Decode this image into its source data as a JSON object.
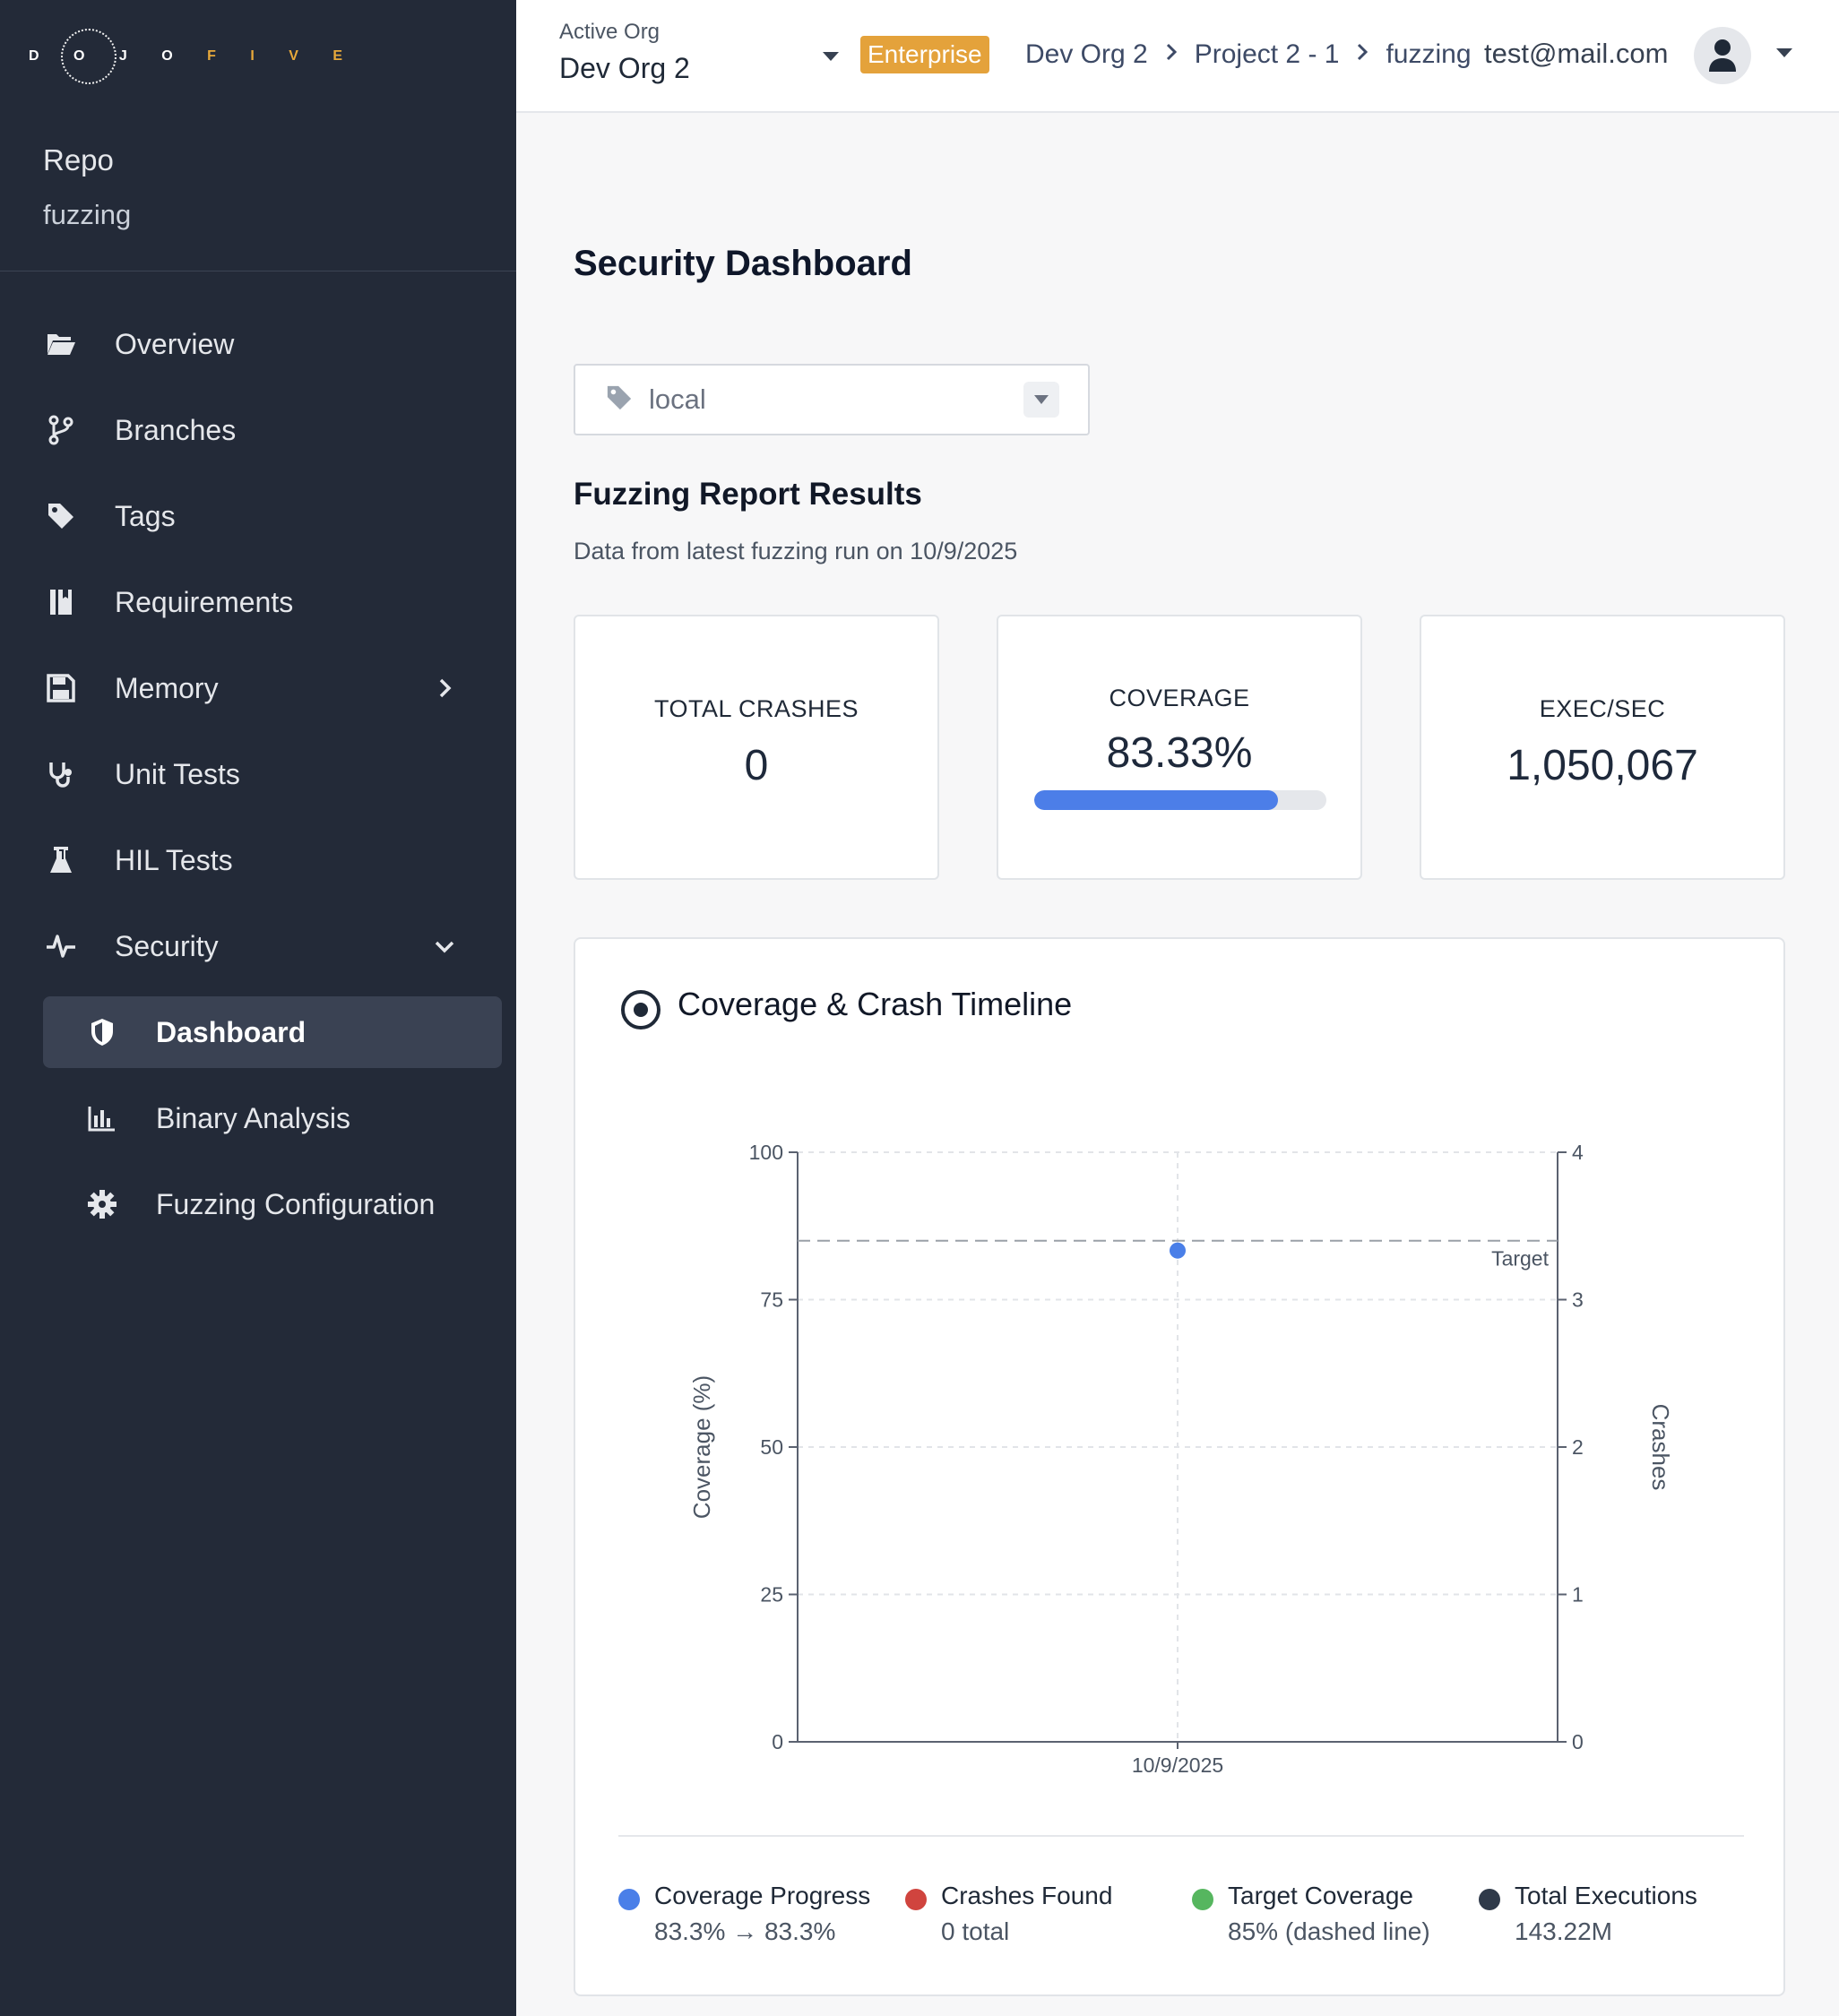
{
  "brand": {
    "logo_text_a": "D O J O",
    "logo_text_b": "F I V E"
  },
  "sidebar": {
    "repo_label": "Repo",
    "repo_name": "fuzzing",
    "items": [
      {
        "label": "Overview",
        "icon": "folder-open-icon"
      },
      {
        "label": "Branches",
        "icon": "branch-icon"
      },
      {
        "label": "Tags",
        "icon": "tag-icon"
      },
      {
        "label": "Requirements",
        "icon": "book-icon"
      },
      {
        "label": "Memory",
        "icon": "save-icon"
      },
      {
        "label": "Unit Tests",
        "icon": "stethoscope-icon"
      },
      {
        "label": "HIL Tests",
        "icon": "flask-icon"
      },
      {
        "label": "Security",
        "icon": "heartbeat-icon"
      }
    ],
    "sub_items": [
      {
        "label": "Dashboard",
        "icon": "shield-icon",
        "active": true
      },
      {
        "label": "Binary Analysis",
        "icon": "bar-chart-icon"
      },
      {
        "label": "Fuzzing Configuration",
        "icon": "gear-icon"
      }
    ]
  },
  "header": {
    "active_org_label": "Active Org",
    "org_name": "Dev Org 2",
    "plan_badge": "Enterprise",
    "breadcrumbs": [
      "Dev Org 2",
      "Project 2 - 1",
      "fuzzing"
    ],
    "user_email": "test@mail.com"
  },
  "main": {
    "title": "Security Dashboard",
    "tag_select_value": "local",
    "report_title": "Fuzzing Report Results",
    "report_subtitle": "Data from latest fuzzing run on 10/9/2025",
    "cards": [
      {
        "label": "TOTAL CRASHES",
        "value": "0"
      },
      {
        "label": "COVERAGE",
        "value": "83.33%",
        "progress": 83.33
      },
      {
        "label": "EXEC/SEC",
        "value": "1,050,067"
      }
    ]
  },
  "timeline": {
    "title": "Coverage & Crash Timeline",
    "legend": [
      {
        "name": "Coverage Progress",
        "sub": "83.3% → 83.3%",
        "color": "#4a7fe8"
      },
      {
        "name": "Crashes Found",
        "sub": "0 total",
        "color": "#d0443e"
      },
      {
        "name": "Target Coverage",
        "sub": "85% (dashed line)",
        "color": "#56b65f"
      },
      {
        "name": "Total Executions",
        "sub": "143.22M",
        "color": "#2f3a4a"
      }
    ]
  },
  "chart_data": {
    "type": "line",
    "x": [
      "10/9/2025"
    ],
    "series": [
      {
        "name": "Coverage Progress",
        "axis": "left",
        "values": [
          83.33
        ],
        "color": "#4a7fe8"
      },
      {
        "name": "Crashes Found",
        "axis": "right",
        "values": [
          0
        ],
        "color": "#d0443e"
      }
    ],
    "reference_line": {
      "label": "Target",
      "value": 85,
      "style": "dashed"
    },
    "ylabel": "Coverage (%)",
    "y2label": "Crashes",
    "ylim": [
      0,
      100
    ],
    "y2lim": [
      0,
      4
    ],
    "yticks": [
      0,
      25,
      50,
      75,
      100
    ],
    "y2ticks": [
      0,
      1,
      2,
      3,
      4
    ],
    "grid": true
  }
}
